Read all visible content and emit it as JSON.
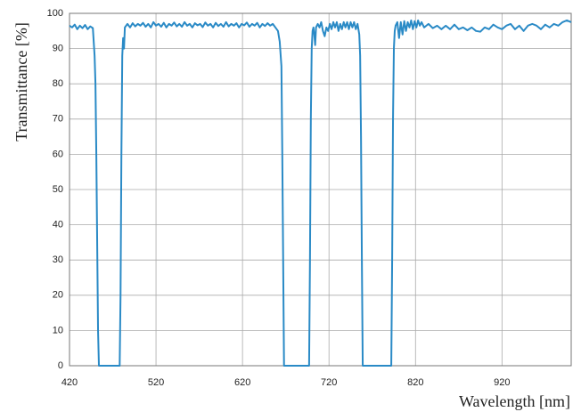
{
  "chart_data": {
    "type": "line",
    "x_label": "Wavelength [nm]",
    "y_label": "Transmittance [%]",
    "x": [
      420,
      423,
      426,
      429,
      432,
      435,
      438,
      441,
      444,
      447,
      449,
      450,
      451,
      452,
      453,
      454,
      478,
      479,
      480,
      481,
      482,
      483,
      484,
      487,
      490,
      493,
      496,
      499,
      502,
      505,
      508,
      511,
      514,
      517,
      520,
      523,
      526,
      529,
      532,
      535,
      538,
      541,
      544,
      547,
      550,
      553,
      556,
      559,
      562,
      565,
      568,
      571,
      574,
      577,
      580,
      583,
      586,
      589,
      592,
      595,
      598,
      601,
      604,
      607,
      610,
      613,
      616,
      619,
      622,
      625,
      628,
      631,
      634,
      637,
      640,
      643,
      646,
      649,
      652,
      655,
      658,
      661,
      663,
      665,
      666,
      667,
      668,
      697,
      698,
      699,
      700,
      701,
      702,
      703,
      704,
      705,
      707,
      709,
      711,
      713,
      715,
      717,
      719,
      721,
      723,
      725,
      727,
      729,
      731,
      733,
      735,
      737,
      739,
      741,
      743,
      745,
      747,
      749,
      751,
      753,
      755,
      756,
      757,
      758,
      759,
      792,
      793,
      794,
      795,
      796,
      797,
      799,
      801,
      803,
      805,
      807,
      809,
      811,
      813,
      815,
      817,
      819,
      821,
      823,
      825,
      827,
      830,
      835,
      840,
      845,
      850,
      855,
      860,
      865,
      870,
      875,
      880,
      885,
      890,
      895,
      900,
      905,
      910,
      915,
      920,
      925,
      930,
      935,
      940,
      945,
      950,
      955,
      960,
      965,
      970,
      975,
      980,
      985,
      990,
      995,
      1000
    ],
    "values": [
      96.5,
      96,
      96.8,
      95.5,
      96.5,
      95.8,
      96.7,
      95.5,
      96.3,
      95.8,
      88,
      80,
      60,
      35,
      10,
      0,
      0,
      20,
      60,
      88,
      93,
      90,
      96,
      97,
      96,
      97.2,
      96.3,
      97,
      96.5,
      97.3,
      96.2,
      97,
      96,
      97.5,
      96.5,
      97,
      96.2,
      97.3,
      96,
      97,
      96.5,
      97.4,
      96.3,
      97,
      96.2,
      97.5,
      96.5,
      97,
      96,
      97.2,
      96.6,
      97,
      96.1,
      97.4,
      96.5,
      97,
      96,
      97.3,
      96.4,
      97,
      96.2,
      97.5,
      96.3,
      97,
      96.5,
      97.2,
      96,
      97,
      96.6,
      97.4,
      96.2,
      97,
      96.5,
      97.3,
      96,
      97,
      96.4,
      97.2,
      96.5,
      97,
      96,
      95,
      92,
      85,
      60,
      30,
      0,
      0,
      30,
      70,
      90,
      95,
      96,
      94,
      91,
      96,
      97,
      96,
      97.5,
      95,
      93.5,
      96,
      95,
      97,
      95.5,
      97.5,
      96,
      97.5,
      95,
      97,
      95.5,
      97.5,
      96,
      97.5,
      95.5,
      97.5,
      96,
      97.5,
      95.5,
      97,
      94,
      88,
      65,
      30,
      0,
      0,
      30,
      70,
      90,
      95,
      96.5,
      97.5,
      93,
      97.5,
      94,
      97.8,
      95,
      97.5,
      96,
      98,
      95.5,
      97.8,
      96,
      98,
      96.5,
      97.5,
      96,
      97,
      95.8,
      96.5,
      95.5,
      96.5,
      95.5,
      96.8,
      95.5,
      96,
      95.2,
      96,
      95,
      94.8,
      96,
      95.5,
      96.8,
      96,
      95.5,
      96.5,
      97,
      95.5,
      96.5,
      95,
      96.5,
      97,
      96.5,
      95.5,
      96.8,
      96,
      97,
      96.5,
      97.5,
      98,
      97.5
    ],
    "color": "#2a8ac6",
    "xlim": [
      420,
      1000
    ],
    "xticks": [
      420,
      520,
      620,
      720,
      820,
      920
    ],
    "ylim": [
      0,
      100
    ],
    "yticks": [
      0,
      10,
      20,
      30,
      40,
      50,
      60,
      70,
      80,
      90,
      100
    ],
    "grid": true
  }
}
